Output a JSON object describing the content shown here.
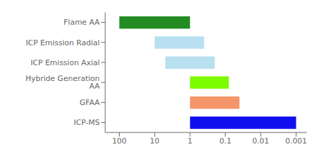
{
  "chart_data": {
    "type": "bar",
    "orientation": "horizontal",
    "log": "x",
    "categories": [
      "Flame AA",
      "ICP Emission Radial",
      "ICP Emission Axial",
      "Hybride Generation AA",
      "GFAA",
      "ICP-MS"
    ],
    "values": [
      [
        100,
        1
      ],
      [
        10,
        0.4
      ],
      [
        5,
        0.2
      ],
      [
        1,
        0.08
      ],
      [
        1,
        0.04
      ],
      [
        1,
        0.001
      ]
    ],
    "colors": [
      "#228B22",
      "#b8e0f0",
      "#b8e0f0",
      "#7CFC00",
      "#F4956A",
      "#1010ee"
    ],
    "xlim": [
      250,
      0.0005
    ],
    "xticks": [
      100,
      10,
      1,
      0.1,
      0.01,
      0.001
    ]
  }
}
